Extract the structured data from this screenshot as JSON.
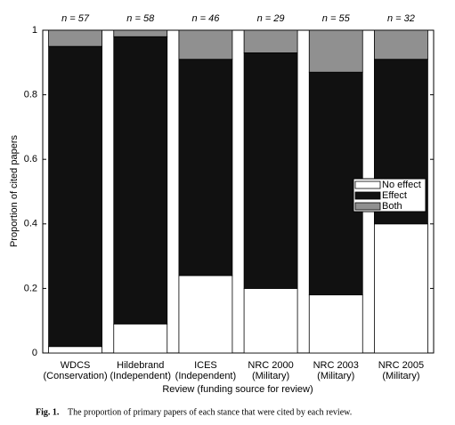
{
  "chart_data": {
    "type": "stacked_bar",
    "categories": [
      [
        "WDCS",
        "(Conservation)"
      ],
      [
        "Hildebrand",
        "(Independent)"
      ],
      [
        "ICES",
        "(Independent)"
      ],
      [
        "NRC 2000",
        "(Military)"
      ],
      [
        "NRC 2003",
        "(Military)"
      ],
      [
        "NRC 2005",
        "(Military)"
      ]
    ],
    "annotations": [
      "n = 57",
      "n = 58",
      "n = 46",
      "n = 29",
      "n = 55",
      "n = 32"
    ],
    "series": [
      {
        "name": "No effect",
        "color": "#ffffff",
        "values": [
          0.02,
          0.09,
          0.24,
          0.2,
          0.18,
          0.4
        ]
      },
      {
        "name": "Effect",
        "color": "#111111",
        "values": [
          0.93,
          0.89,
          0.67,
          0.73,
          0.69,
          0.51
        ]
      },
      {
        "name": "Both",
        "color": "#909090",
        "values": [
          0.05,
          0.02,
          0.09,
          0.07,
          0.13,
          0.09
        ]
      }
    ],
    "ylim": [
      0,
      1
    ],
    "yticks": [
      0,
      0.2,
      0.4,
      0.6,
      0.8,
      1
    ],
    "xlabel": "Review (funding source for review)",
    "ylabel": "Proportion of cited papers",
    "legend": "right",
    "caption": {
      "label": "Fig. 1.",
      "text": "The proportion of primary papers of each stance that were cited by each review."
    }
  }
}
